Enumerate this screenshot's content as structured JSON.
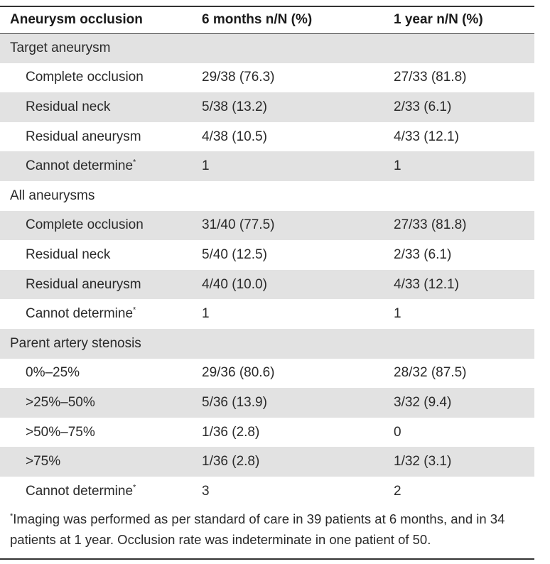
{
  "header": {
    "col1": "Aneurysm occlusion",
    "col2": "6 months n/N (%)",
    "col3": "1 year n/N (%)"
  },
  "rows": [
    {
      "type": "section",
      "label": "Target aneurysm"
    },
    {
      "type": "item",
      "label": "Complete occlusion",
      "m6": "29/38 (76.3)",
      "y1": "27/33 (81.8)"
    },
    {
      "type": "item",
      "label": "Residual neck",
      "m6": "5/38 (13.2)",
      "y1": "2/33 (6.1)"
    },
    {
      "type": "item",
      "label": "Residual aneurysm",
      "m6": "4/38 (10.5)",
      "y1": "4/33 (12.1)"
    },
    {
      "type": "item",
      "label": "Cannot determine",
      "sup": "*",
      "m6": "1",
      "y1": "1"
    },
    {
      "type": "section",
      "label": "All aneurysms"
    },
    {
      "type": "item",
      "label": "Complete occlusion",
      "m6": "31/40 (77.5)",
      "y1": "27/33 (81.8)"
    },
    {
      "type": "item",
      "label": "Residual neck",
      "m6": "5/40 (12.5)",
      "y1": "2/33 (6.1)"
    },
    {
      "type": "item",
      "label": "Residual aneurysm",
      "m6": "4/40 (10.0)",
      "y1": "4/33 (12.1)"
    },
    {
      "type": "item",
      "label": "Cannot determine",
      "sup": "*",
      "m6": "1",
      "y1": "1"
    },
    {
      "type": "section",
      "label": "Parent artery stenosis"
    },
    {
      "type": "item",
      "label": "0%–25%",
      "m6": "29/36 (80.6)",
      "y1": "28/32 (87.5)"
    },
    {
      "type": "item",
      "label": ">25%–50%",
      "m6": "5/36 (13.9)",
      "y1": "3/32 (9.4)"
    },
    {
      "type": "item",
      "label": ">50%–75%",
      "m6": "1/36 (2.8)",
      "y1": "0"
    },
    {
      "type": "item",
      "label": ">75%",
      "m6": "1/36 (2.8)",
      "y1": "1/32 (3.1)"
    },
    {
      "type": "item",
      "label": "Cannot determine",
      "sup": "*",
      "m6": "3",
      "y1": "2"
    }
  ],
  "footnote": {
    "marker": "*",
    "text": "Imaging was performed as per standard of care in 39 patients at 6 months, and in 34 patients at 1 year. Occlusion rate was indeterminate in one patient of 50."
  }
}
